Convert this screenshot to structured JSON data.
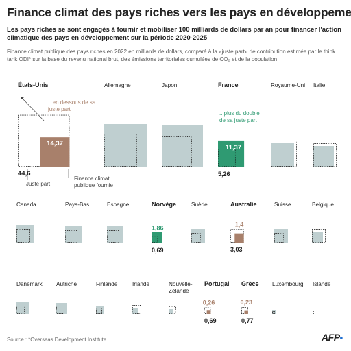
{
  "title": "Finance climat des pays riches vers les pays en développement",
  "subtitle": "Les pays riches se sont engagés à fournir et mobiliser 100 milliards de dollars par an pour financer l'action climatique des pays en développement sur la période 2020-2025",
  "description": "Finance climat publique des pays riches en 2022 en milliards de dollars, comparé à la «juste part» de contribution estimée par le think tank ODI* sur la base du revenu national brut, des émissions territoriales cumulées de CO₂ et de la population",
  "source": "Source : *Overseas Development Institute",
  "logo": "AFP",
  "colors": {
    "fair_share_box": "#bfcfd0",
    "below_highlight": "#a8806b",
    "above_highlight": "#2f9a72",
    "text_below": "#a8806b",
    "text_above": "#2f9a72"
  },
  "annotations": {
    "below": "...en dessous de sa juste part",
    "above": "...plus du double de sa juste part",
    "fair_share_label": "Juste part",
    "provided_label": "Finance climat publique fournie"
  },
  "chart_data": {
    "type": "proportional-area squares",
    "rows": [
      [
        {
          "country": "États-Unis",
          "bold": true,
          "provided": 14.37,
          "fair_share": 44.6,
          "show_values": true,
          "status": "below"
        },
        {
          "country": "Allemagne",
          "bold": false,
          "status": "above"
        },
        {
          "country": "Japon",
          "bold": false,
          "status": "above"
        },
        {
          "country": "France",
          "bold": true,
          "provided": 11.37,
          "fair_share": 5.26,
          "show_values": true,
          "status": "above"
        },
        {
          "country": "Royaume-Uni",
          "bold": false,
          "status": "below"
        },
        {
          "country": "Italie",
          "bold": false,
          "status": "below"
        }
      ],
      [
        {
          "country": "Canada",
          "bold": false,
          "status": "above"
        },
        {
          "country": "Pays-Bas",
          "bold": false,
          "status": "above"
        },
        {
          "country": "Espagne",
          "bold": false,
          "status": "above"
        },
        {
          "country": "Norvège",
          "bold": true,
          "provided": 1.86,
          "fair_share": 0.69,
          "show_values": true,
          "status": "above"
        },
        {
          "country": "Suède",
          "bold": false,
          "status": "above"
        },
        {
          "country": "Australie",
          "bold": true,
          "provided": 1.4,
          "fair_share": 3.03,
          "show_values": true,
          "status": "below"
        },
        {
          "country": "Suisse",
          "bold": false,
          "status": "above"
        },
        {
          "country": "Belgique",
          "bold": false,
          "status": "below"
        }
      ],
      [
        {
          "country": "Danemark",
          "bold": false,
          "status": "above"
        },
        {
          "country": "Autriche",
          "bold": false,
          "status": "above"
        },
        {
          "country": "Finlande",
          "bold": false,
          "status": "above"
        },
        {
          "country": "Irlande",
          "bold": false,
          "status": "below"
        },
        {
          "country": "Nouvelle-Zélande",
          "bold": false,
          "status": "below"
        },
        {
          "country": "Portugal",
          "bold": true,
          "provided": 0.26,
          "fair_share": 0.69,
          "show_values": true,
          "status": "below"
        },
        {
          "country": "Grèce",
          "bold": true,
          "provided": 0.23,
          "fair_share": 0.77,
          "show_values": true,
          "status": "below"
        },
        {
          "country": "Luxembourg",
          "bold": false,
          "status": "above"
        },
        {
          "country": "Islande",
          "bold": false,
          "status": "below"
        }
      ]
    ]
  }
}
